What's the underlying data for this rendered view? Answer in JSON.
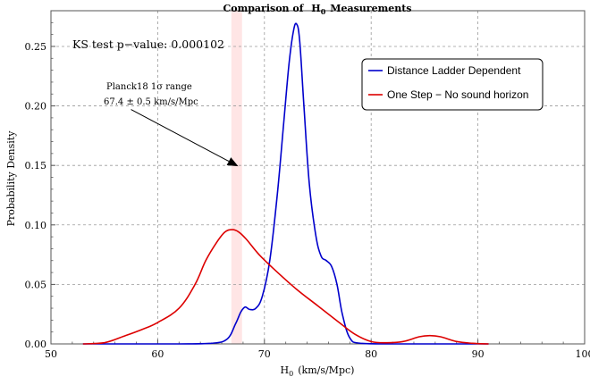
{
  "chart_data": {
    "type": "line",
    "title": {
      "prefix": "Comparison of",
      "symbol": "H",
      "sub": "0",
      "suffix": "Measurements"
    },
    "xlabel": {
      "symbol": "H",
      "sub": "0",
      "suffix": "(km/s/Mpc)"
    },
    "ylabel": "Probability Density",
    "xlim": [
      50,
      100
    ],
    "ylim": [
      0,
      0.28
    ],
    "x_ticks": [
      50,
      60,
      70,
      80,
      90,
      100
    ],
    "y_ticks": [
      0.0,
      0.05,
      0.1,
      0.15,
      0.2,
      0.25
    ],
    "y_tick_labels": [
      "0.00",
      "0.05",
      "0.10",
      "0.15",
      "0.20",
      "0.25"
    ],
    "grid": true,
    "legend_position": "top-right",
    "band": {
      "x_range": [
        66.9,
        67.9
      ],
      "color": "#ffdcdc"
    },
    "annotations": {
      "ks_test": "KS test p−value: 0.000102",
      "planck_line1": "Planck18 1σ range",
      "planck_line2": "67.4 ± 0.5 km/s/Mpc"
    },
    "arrow": {
      "from": [
        57.5,
        0.197
      ],
      "to": [
        67.4,
        0.15
      ]
    },
    "series": [
      {
        "name": "Distance Ladder Dependent",
        "color": "#0000cc",
        "x": [
          53,
          62,
          65,
          66.5,
          67.3,
          67.8,
          68.2,
          68.6,
          69.2,
          69.8,
          70.5,
          71.2,
          71.8,
          72.3,
          72.7,
          73.0,
          73.3,
          73.7,
          74.2,
          74.8,
          75.3,
          75.8,
          76.3,
          76.8,
          77.3,
          78.0,
          79,
          82,
          91
        ],
        "y": [
          0.0,
          0.0,
          0.0005,
          0.004,
          0.017,
          0.027,
          0.031,
          0.029,
          0.03,
          0.04,
          0.07,
          0.125,
          0.185,
          0.235,
          0.262,
          0.269,
          0.255,
          0.2,
          0.135,
          0.092,
          0.074,
          0.07,
          0.065,
          0.05,
          0.025,
          0.005,
          0.0005,
          0.0,
          0.0
        ]
      },
      {
        "name": "One Step − No sound horizon",
        "color": "#dd0000",
        "x": [
          53,
          55,
          57,
          58.5,
          60,
          62,
          63.5,
          64.5,
          65.5,
          66.3,
          67,
          67.6,
          68.3,
          69.5,
          71,
          73,
          75,
          77,
          78.5,
          80,
          81.5,
          83,
          84.5,
          85.5,
          86.5,
          88,
          89.5,
          91
        ],
        "y": [
          0.0,
          0.001,
          0.007,
          0.012,
          0.018,
          0.03,
          0.05,
          0.07,
          0.085,
          0.094,
          0.096,
          0.094,
          0.088,
          0.075,
          0.062,
          0.046,
          0.032,
          0.018,
          0.008,
          0.002,
          0.001,
          0.002,
          0.006,
          0.007,
          0.006,
          0.002,
          0.0005,
          0.0
        ]
      }
    ]
  }
}
